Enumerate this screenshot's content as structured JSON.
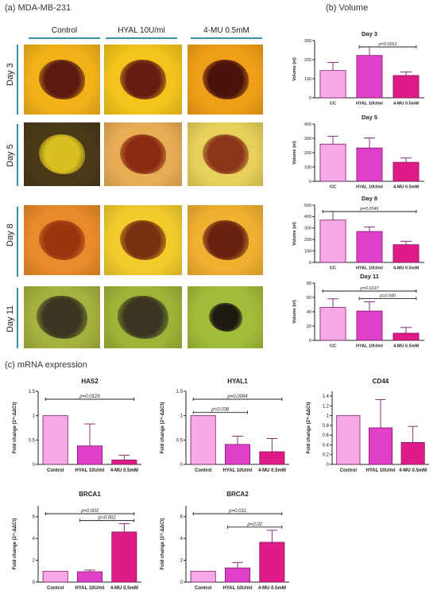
{
  "sections": {
    "a_title": "(a) MDA-MB-231",
    "b_title": "(b) Volume",
    "c_title": "(c) mRNA expression"
  },
  "micrograph": {
    "columns": [
      "Control",
      "HYAL 10U/ml",
      "4-MU 0.5mM"
    ],
    "rows": [
      "Day 3",
      "Day 5",
      "Day 8",
      "Day 11"
    ],
    "backgrounds": [
      [
        "#f2b21a",
        "#f4c41c",
        "#f0a018"
      ],
      [
        "#4a3a18",
        "#e9ad55",
        "#e8d15b"
      ],
      [
        "#e98b2a",
        "#f2cc2c",
        "#f0b030"
      ],
      [
        "#a6b23e",
        "#9fb437",
        "#a2bd3a"
      ]
    ],
    "spheroid_colors": [
      [
        "#5a1a10",
        "#6b1c10",
        "#4a1208"
      ],
      [
        "#d8c020",
        "#8a2a10",
        "#8a3418"
      ],
      [
        "#9a3510",
        "#7a3010",
        "#6a2210"
      ],
      [
        "#3a3520",
        "#3a3520",
        "#1e1a12"
      ]
    ]
  },
  "chart_data": [
    {
      "type": "bar",
      "title": "Day 3",
      "ylabel": "Volume (nl)",
      "xlabel": "",
      "categories": [
        "CC",
        "HYAL 10U/ml",
        "4-MU 0.5mM"
      ],
      "values": [
        143,
        222,
        117
      ],
      "errors": [
        42,
        45,
        18
      ],
      "ylim": [
        0,
        300
      ],
      "yticks": [
        0,
        100,
        200,
        300
      ],
      "colors": [
        "#f7a8e6",
        "#e040c8",
        "#e01a86"
      ],
      "annotations": [
        {
          "text": "p=0.0261",
          "from": 1,
          "to": 2
        }
      ]
    },
    {
      "type": "bar",
      "title": "Day 5",
      "ylabel": "Volume (nl)",
      "xlabel": "",
      "categories": [
        "CC",
        "HYAL 10U/ml",
        "4-MU 0.5mM"
      ],
      "values": [
        260,
        233,
        133
      ],
      "errors": [
        55,
        70,
        30
      ],
      "ylim": [
        0,
        400
      ],
      "yticks": [
        0,
        100,
        200,
        300,
        400
      ],
      "colors": [
        "#f7a8e6",
        "#e040c8",
        "#e01a86"
      ],
      "annotations": []
    },
    {
      "type": "bar",
      "title": "Day 8",
      "ylabel": "Volume (nl)",
      "xlabel": "",
      "categories": [
        "CC",
        "HYAL 10U/ml",
        "4-MU 0.5mM"
      ],
      "values": [
        370,
        270,
        155
      ],
      "errors": [
        75,
        40,
        30
      ],
      "ylim": [
        0,
        500
      ],
      "yticks": [
        0,
        100,
        200,
        300,
        400,
        500
      ],
      "colors": [
        "#f7a8e6",
        "#e040c8",
        "#e01a86"
      ],
      "annotations": [
        {
          "text": "p=0.0046",
          "from": 0,
          "to": 2
        }
      ]
    },
    {
      "type": "bar",
      "title": "Day 11",
      "ylabel": "Volume (nl)",
      "xlabel": "",
      "categories": [
        "CC",
        "HYAL 10U/ml",
        "4-MU 0.5mM"
      ],
      "values": [
        46,
        41,
        10
      ],
      "errors": [
        12,
        13,
        8
      ],
      "ylim": [
        0,
        80
      ],
      "yticks": [
        0,
        20,
        40,
        60,
        80
      ],
      "colors": [
        "#f7a8e6",
        "#e040c8",
        "#e01a86"
      ],
      "annotations": [
        {
          "text": "p=0.0237",
          "from": 0,
          "to": 2
        },
        {
          "text": "p=0.040",
          "from": 1,
          "to": 2
        }
      ]
    },
    {
      "type": "bar",
      "title": "HAS2",
      "ylabel": "Fold change (2^-ΔΔCt)",
      "xlabel": "",
      "categories": [
        "Control",
        "HYAL 10U/ml",
        "4-MU 0.5mM"
      ],
      "values": [
        1.0,
        0.38,
        0.09
      ],
      "errors": [
        0,
        0.45,
        0.1
      ],
      "ylim": [
        0,
        1.5
      ],
      "yticks": [
        0.0,
        0.5,
        1.0,
        1.5
      ],
      "colors": [
        "#f7a8e6",
        "#e040c8",
        "#e01a86"
      ],
      "annotations": [
        {
          "text": "p=0.0129",
          "from": 0,
          "to": 2
        }
      ]
    },
    {
      "type": "bar",
      "title": "HYAL1",
      "ylabel": "Fold change (2^-ΔΔCt)",
      "xlabel": "",
      "categories": [
        "Control",
        "HYAL 10U/ml",
        "4-MU 0.5mM"
      ],
      "values": [
        1.0,
        0.41,
        0.26
      ],
      "errors": [
        0,
        0.17,
        0.27
      ],
      "ylim": [
        0,
        1.5
      ],
      "yticks": [
        0.0,
        0.5,
        1.0,
        1.5
      ],
      "colors": [
        "#f7a8e6",
        "#e040c8",
        "#e01a86"
      ],
      "annotations": [
        {
          "text": "p=0.0094",
          "from": 0,
          "to": 2
        },
        {
          "text": "p=0.038",
          "from": 0,
          "to": 1
        }
      ]
    },
    {
      "type": "bar",
      "title": "CD44",
      "ylabel": "Fold change (2^-ΔΔCt)",
      "xlabel": "",
      "categories": [
        "Control",
        "HYAL 10U/ml",
        "4-MU 0.5mM"
      ],
      "values": [
        1.0,
        0.75,
        0.45
      ],
      "errors": [
        0,
        0.58,
        0.33
      ],
      "ylim": [
        0,
        1.5
      ],
      "yticks": [
        0.0,
        0.2,
        0.4,
        0.6,
        0.8,
        1.0,
        1.2,
        1.4
      ],
      "colors": [
        "#f7a8e6",
        "#e040c8",
        "#e01a86"
      ],
      "annotations": []
    },
    {
      "type": "bar",
      "title": "BRCA1",
      "ylabel": "Fold change (2^-ΔΔCt)",
      "xlabel": "",
      "categories": [
        "Control",
        "HYAL 10U/ml",
        "4-MU 0.5mM"
      ],
      "values": [
        1.0,
        0.95,
        4.6
      ],
      "errors": [
        0,
        0.15,
        0.75
      ],
      "ylim": [
        0,
        7
      ],
      "yticks": [
        0,
        2,
        4,
        6
      ],
      "colors": [
        "#f7a8e6",
        "#e040c8",
        "#e01a86"
      ],
      "annotations": [
        {
          "text": "p=0.002",
          "from": 0,
          "to": 2
        },
        {
          "text": "p=0.002",
          "from": 1,
          "to": 2
        }
      ]
    },
    {
      "type": "bar",
      "title": "BRCA2",
      "ylabel": "Fold change (2^-ΔΔCt)",
      "xlabel": "",
      "categories": [
        "Control",
        "HYAL 10U/ml",
        "4-MU 0.5mM"
      ],
      "values": [
        1.0,
        1.3,
        3.65
      ],
      "errors": [
        0,
        0.5,
        1.1
      ],
      "ylim": [
        0,
        7
      ],
      "yticks": [
        0,
        2,
        4,
        6
      ],
      "colors": [
        "#f7a8e6",
        "#e040c8",
        "#e01a86"
      ],
      "annotations": [
        {
          "text": "p=0.011",
          "from": 0,
          "to": 2
        },
        {
          "text": "p=0.02",
          "from": 1,
          "to": 2
        }
      ]
    }
  ]
}
